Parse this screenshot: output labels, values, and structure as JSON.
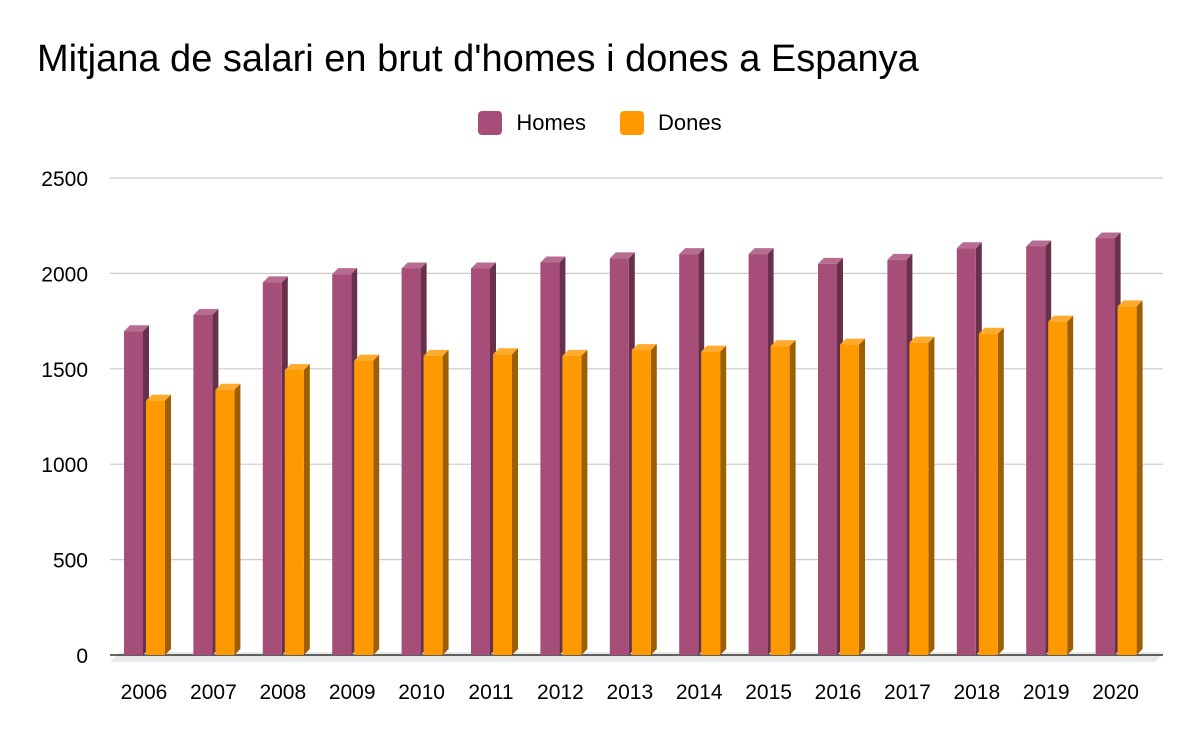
{
  "chart_data": {
    "type": "bar",
    "title": "Mitjana de salari en brut d'homes i dones a Espanya",
    "categories": [
      "2006",
      "2007",
      "2008",
      "2009",
      "2010",
      "2011",
      "2012",
      "2013",
      "2014",
      "2015",
      "2016",
      "2017",
      "2018",
      "2019",
      "2020"
    ],
    "series": [
      {
        "name": "Homes",
        "color": "#a64d79",
        "values": [
          1697,
          1782,
          1953,
          1996,
          2026,
          2026,
          2057,
          2079,
          2101,
          2101,
          2050,
          2071,
          2132,
          2141,
          2183
        ]
      },
      {
        "name": "Dones",
        "color": "#ff9900",
        "values": [
          1333,
          1390,
          1494,
          1543,
          1568,
          1576,
          1568,
          1598,
          1590,
          1619,
          1627,
          1637,
          1684,
          1747,
          1827
        ]
      }
    ],
    "yticks": [
      0,
      500,
      1000,
      1500,
      2000,
      2500
    ],
    "ylim": [
      0,
      2500
    ],
    "grid": true,
    "legend_position": "top-center",
    "style": "3d-bar"
  }
}
